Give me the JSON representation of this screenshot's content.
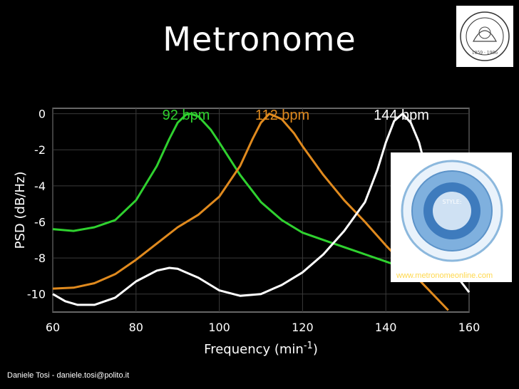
{
  "title": "Metronome",
  "footer": "Daniele Tosi - daniele.tosi@polito.it",
  "logo": {
    "name": "university-seal"
  },
  "inset": {
    "url": "www.metronomeonline.com",
    "dial_center_label": "STYLE:"
  },
  "chart_data": {
    "type": "line",
    "xlabel": "Frequency (min",
    "xlabel_sup": "-1",
    "xlabel_end": ")",
    "ylabel": "PSD (dB/Hz)",
    "xlim": [
      60,
      160
    ],
    "ylim": [
      -11,
      0.3
    ],
    "xticks": [
      60,
      80,
      100,
      120,
      140,
      160
    ],
    "yticks": [
      0,
      -2,
      -4,
      -6,
      -8,
      -10
    ],
    "grid": true,
    "annotations": [
      "92 bpm",
      "112 bpm",
      "144 bpm"
    ],
    "series": [
      {
        "name": "92 bpm",
        "color": "#2fd12f",
        "x": [
          60,
          65,
          70,
          75,
          80,
          85,
          88,
          90,
          92,
          93,
          95,
          98,
          100,
          105,
          110,
          115,
          120,
          125,
          130,
          135,
          140,
          145,
          150,
          155,
          160
        ],
        "y": [
          -6.4,
          -6.5,
          -6.3,
          -5.9,
          -4.8,
          -2.9,
          -1.4,
          -0.5,
          -0.05,
          0,
          -0.15,
          -0.9,
          -1.6,
          -3.4,
          -4.9,
          -5.9,
          -6.6,
          -7.0,
          -7.4,
          -7.8,
          -8.2,
          -8.6,
          -8.9,
          -9.1,
          -9.0
        ]
      },
      {
        "name": "112 bpm",
        "color": "#e08a1e",
        "x": [
          60,
          65,
          70,
          75,
          80,
          85,
          90,
          95,
          100,
          105,
          108,
          110,
          112,
          115,
          118,
          120,
          125,
          130,
          135,
          140,
          145,
          150,
          155
        ],
        "y": [
          -9.7,
          -9.65,
          -9.4,
          -8.9,
          -8.1,
          -7.2,
          -6.3,
          -5.6,
          -4.6,
          -2.9,
          -1.4,
          -0.5,
          0,
          -0.3,
          -1.1,
          -1.8,
          -3.4,
          -4.8,
          -6.0,
          -7.3,
          -8.5,
          -9.7,
          -10.9
        ]
      },
      {
        "name": "144 bpm",
        "color": "#ffffff",
        "x": [
          60,
          63,
          66,
          70,
          75,
          80,
          85,
          88,
          90,
          95,
          100,
          105,
          110,
          115,
          120,
          125,
          130,
          135,
          138,
          140,
          142,
          144,
          146,
          148,
          150,
          152,
          155,
          158,
          160
        ],
        "y": [
          -10.0,
          -10.4,
          -10.6,
          -10.6,
          -10.2,
          -9.3,
          -8.7,
          -8.55,
          -8.6,
          -9.1,
          -9.8,
          -10.1,
          -10.0,
          -9.5,
          -8.8,
          -7.8,
          -6.5,
          -4.9,
          -3.1,
          -1.6,
          -0.4,
          0,
          -0.5,
          -1.6,
          -3.4,
          -5.4,
          -7.8,
          -9.3,
          -9.9
        ]
      }
    ]
  }
}
